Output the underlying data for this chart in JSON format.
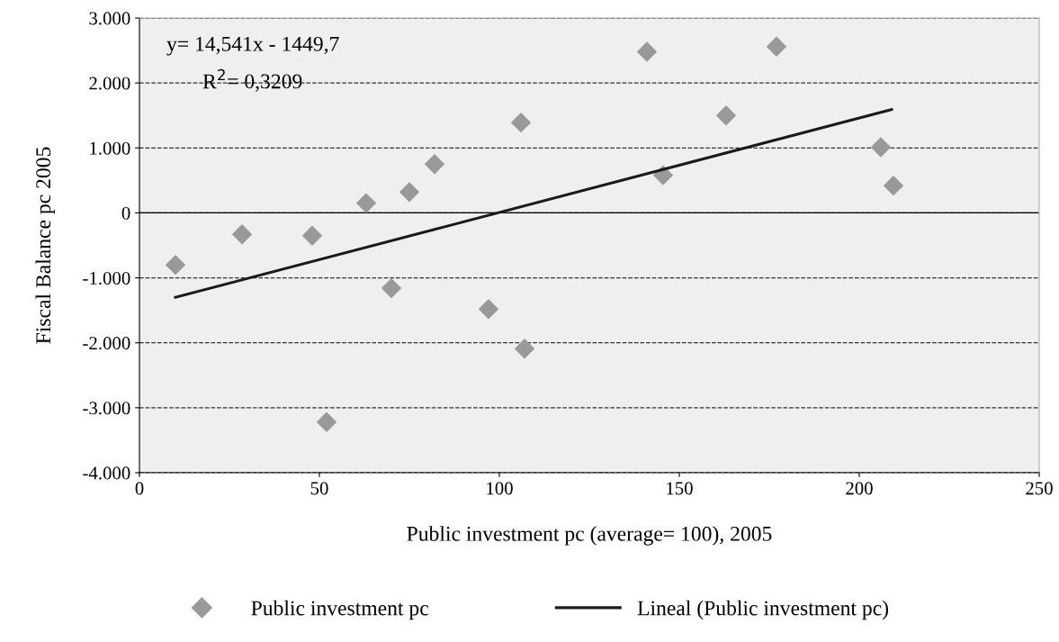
{
  "chart_data": {
    "type": "scatter",
    "xlabel": "Public investment pc (average= 100), 2005",
    "ylabel": "Fiscal Balance pc 2005",
    "annotations": [
      "y= 14,541x - 1449,7",
      "R$^{2}$= 0,3209"
    ],
    "series": [
      {
        "name": "Public investment pc",
        "color": "#999999",
        "marker": "diamond",
        "x": [
          10,
          28.5,
          48,
          52,
          63,
          70,
          75,
          82,
          97,
          106,
          107,
          141,
          145.5,
          163,
          177,
          206,
          209.5
        ],
        "values": [
          -800,
          -330,
          -350,
          -3220,
          150,
          -1160,
          320,
          750,
          -1480,
          1390,
          -2090,
          2480,
          580,
          1500,
          2560,
          1010,
          420
        ]
      },
      {
        "name": "Lineal (Public investment pc)",
        "type": "line",
        "color": "#1a1a1a",
        "line_style": "solid",
        "x": [
          10,
          209
        ],
        "values": [
          -1300,
          1590
        ]
      }
    ],
    "xlim": [
      0,
      250
    ],
    "xticks": [
      0,
      50,
      100,
      150,
      200,
      250
    ],
    "ylim": [
      -4000,
      3000
    ],
    "yticks": [
      {
        "value": -4000,
        "label": "-4.000"
      },
      {
        "value": -3000,
        "label": "-3.000"
      },
      {
        "value": -2000,
        "label": "-2.000"
      },
      {
        "value": -1000,
        "label": "-1.000"
      },
      0,
      {
        "value": 1000,
        "label": "1.000"
      },
      {
        "value": 2000,
        "label": "2.000"
      },
      {
        "value": 3000,
        "label": "3.000"
      }
    ],
    "ref_lines": [
      {
        "axis": "y",
        "value": 0,
        "color": "#000000",
        "line_style": "solid"
      }
    ],
    "grid": "y",
    "legend": "bottom"
  }
}
